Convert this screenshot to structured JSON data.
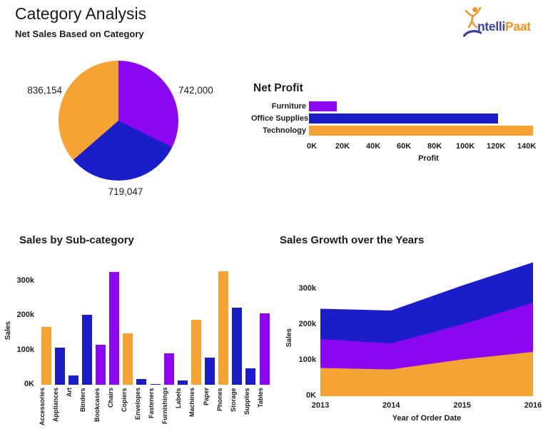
{
  "page": {
    "title": "Category Analysis",
    "subtitle": "Net Sales Based on Category"
  },
  "logo": {
    "text_primary": "ntelli",
    "text_secondary": "Paat",
    "blue": "#3B3F9E",
    "orange": "#F6921E"
  },
  "palette": {
    "furniture": "#8B06F1",
    "office_supplies": "#1B1EC8",
    "technology": "#F5A332"
  },
  "chart_data": [
    {
      "id": "net-sales-pie",
      "type": "pie",
      "title": "Net Sales Based on Category",
      "start_angle_deg": 0,
      "direction": "clockwise",
      "slices": [
        {
          "category": "Furniture",
          "category_key": "furniture",
          "label": "742,000",
          "value": 742000
        },
        {
          "category": "Office Supplies",
          "category_key": "office_supplies",
          "label": "719,047",
          "value": 719047
        },
        {
          "category": "Technology",
          "category_key": "technology",
          "label": "836,154",
          "value": 836154
        }
      ]
    },
    {
      "id": "net-profit-bar",
      "type": "bar",
      "orientation": "horizontal",
      "title": "Net Profit",
      "xlabel": "Profit",
      "units": "thousands",
      "categories": [
        "Furniture",
        "Office Supplies",
        "Technology"
      ],
      "category_keys": [
        "furniture",
        "office_supplies",
        "technology"
      ],
      "values_k": [
        18,
        123,
        146
      ],
      "xlim_k": [
        0,
        152
      ],
      "x_ticks": [
        {
          "label": "0K",
          "value": 0
        },
        {
          "label": "20K",
          "value": 20
        },
        {
          "label": "40K",
          "value": 40
        },
        {
          "label": "60K",
          "value": 60
        },
        {
          "label": "80K",
          "value": 80
        },
        {
          "label": "100K",
          "value": 100
        },
        {
          "label": "120K",
          "value": 120
        },
        {
          "label": "140K",
          "value": 140
        }
      ]
    },
    {
      "id": "sales-by-subcategory",
      "type": "bar",
      "orientation": "vertical",
      "title": "Sales by Sub-category",
      "ylabel": "Sales",
      "units": "thousands",
      "categories": [
        "Accessories",
        "Appliances",
        "Art",
        "Binders",
        "Bookcases",
        "Chairs",
        "Copiers",
        "Envelopes",
        "Fasteners",
        "Furnishings",
        "Labels",
        "Machines",
        "Paper",
        "Phones",
        "Storage",
        "Supplies",
        "Tables"
      ],
      "category_keys": [
        "technology",
        "office_supplies",
        "office_supplies",
        "office_supplies",
        "furniture",
        "furniture",
        "technology",
        "office_supplies",
        "office_supplies",
        "furniture",
        "office_supplies",
        "technology",
        "office_supplies",
        "technology",
        "office_supplies",
        "office_supplies",
        "furniture"
      ],
      "values_k": [
        167,
        107,
        27,
        203,
        115,
        328,
        150,
        16,
        3,
        92,
        12,
        189,
        78,
        330,
        224,
        47,
        207
      ],
      "ylim_k": [
        0,
        360
      ],
      "y_ticks": [
        {
          "label": "0K",
          "value": 0
        },
        {
          "label": "100k",
          "value": 100
        },
        {
          "label": "200k",
          "value": 200
        },
        {
          "label": "300k",
          "value": 300
        }
      ]
    },
    {
      "id": "sales-growth-area",
      "type": "area",
      "stacked": true,
      "title": "Sales Growth over the Years",
      "xlabel": "Year of Order Date",
      "ylabel": "Sales",
      "units": "thousands",
      "x": [
        "2013",
        "2014",
        "2015",
        "2016"
      ],
      "series": [
        {
          "name": "Technology",
          "category_key": "technology",
          "values_k": [
            79,
            75,
            103,
            124
          ]
        },
        {
          "name": "Furniture",
          "category_key": "furniture",
          "values_k": [
            81,
            73,
            98,
            138
          ]
        },
        {
          "name": "Office Supplies",
          "category_key": "office_supplies",
          "values_k": [
            85,
            92,
            109,
            113
          ]
        }
      ],
      "ylim_k": [
        0,
        390
      ],
      "y_ticks": [
        {
          "label": "0K",
          "value": 0
        },
        {
          "label": "100k",
          "value": 100
        },
        {
          "label": "200k",
          "value": 200
        },
        {
          "label": "300k",
          "value": 300
        }
      ]
    }
  ]
}
